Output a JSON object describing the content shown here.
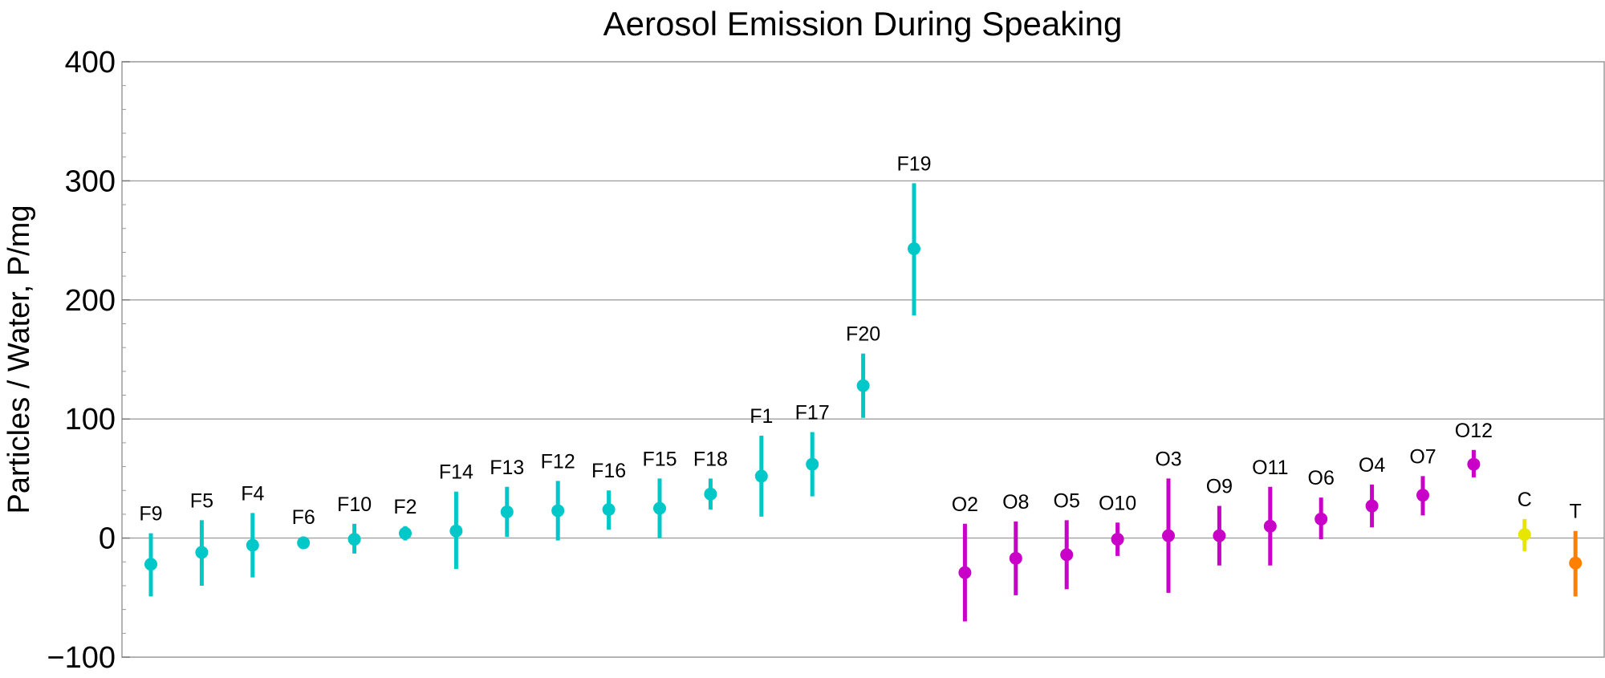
{
  "chart_data": {
    "type": "scatter",
    "title": "Aerosol Emission During Speaking",
    "ylabel": "Particles / Water,   P/mg",
    "xlabel": "",
    "ylim": [
      -100,
      400
    ],
    "yticks": [
      -100,
      0,
      100,
      200,
      300,
      400
    ],
    "ytick_labels": [
      "−100",
      "0",
      "100",
      "200",
      "300",
      "400"
    ],
    "grid": "horizontal at 0, 100, 200, 300",
    "legend": "none",
    "colors": {
      "F": "#00c8c8",
      "O": "#c800c8",
      "C": "#e6e600",
      "T": "#ff7f00"
    },
    "points": [
      {
        "label": "F9",
        "group": "F",
        "y": -22,
        "low": -49,
        "high": 4
      },
      {
        "label": "F5",
        "group": "F",
        "y": -12,
        "low": -40,
        "high": 15
      },
      {
        "label": "F4",
        "group": "F",
        "y": -6,
        "low": -33,
        "high": 21
      },
      {
        "label": "F6",
        "group": "F",
        "y": -4,
        "low": -8,
        "high": 1
      },
      {
        "label": "F10",
        "group": "F",
        "y": -1,
        "low": -13,
        "high": 12
      },
      {
        "label": "F2",
        "group": "F",
        "y": 4,
        "low": -2,
        "high": 10
      },
      {
        "label": "F14",
        "group": "F",
        "y": 6,
        "low": -26,
        "high": 39
      },
      {
        "label": "F13",
        "group": "F",
        "y": 22,
        "low": 1,
        "high": 43
      },
      {
        "label": "F12",
        "group": "F",
        "y": 23,
        "low": -2,
        "high": 48
      },
      {
        "label": "F16",
        "group": "F",
        "y": 24,
        "low": 7,
        "high": 40
      },
      {
        "label": "F15",
        "group": "F",
        "y": 25,
        "low": 0,
        "high": 50
      },
      {
        "label": "F18",
        "group": "F",
        "y": 37,
        "low": 24,
        "high": 50
      },
      {
        "label": "F1",
        "group": "F",
        "y": 52,
        "low": 18,
        "high": 86
      },
      {
        "label": "F17",
        "group": "F",
        "y": 62,
        "low": 35,
        "high": 89
      },
      {
        "label": "F20",
        "group": "F",
        "y": 128,
        "low": 101,
        "high": 155
      },
      {
        "label": "F19",
        "group": "F",
        "y": 243,
        "low": 187,
        "high": 298
      },
      {
        "label": "O2",
        "group": "O",
        "y": -29,
        "low": -70,
        "high": 12
      },
      {
        "label": "O8",
        "group": "O",
        "y": -17,
        "low": -48,
        "high": 14
      },
      {
        "label": "O5",
        "group": "O",
        "y": -14,
        "low": -43,
        "high": 15
      },
      {
        "label": "O10",
        "group": "O",
        "y": -1,
        "low": -15,
        "high": 13
      },
      {
        "label": "O3",
        "group": "O",
        "y": 2,
        "low": -46,
        "high": 50
      },
      {
        "label": "O9",
        "group": "O",
        "y": 2,
        "low": -23,
        "high": 27
      },
      {
        "label": "O11",
        "group": "O",
        "y": 10,
        "low": -23,
        "high": 43
      },
      {
        "label": "O6",
        "group": "O",
        "y": 16,
        "low": -1,
        "high": 34
      },
      {
        "label": "O4",
        "group": "O",
        "y": 27,
        "low": 9,
        "high": 45
      },
      {
        "label": "O7",
        "group": "O",
        "y": 36,
        "low": 19,
        "high": 52
      },
      {
        "label": "O12",
        "group": "O",
        "y": 62,
        "low": 51,
        "high": 74
      },
      {
        "label": "C",
        "group": "C",
        "y": 3,
        "low": -11,
        "high": 16
      },
      {
        "label": "T",
        "group": "T",
        "y": -21,
        "low": -49,
        "high": 6
      }
    ]
  }
}
